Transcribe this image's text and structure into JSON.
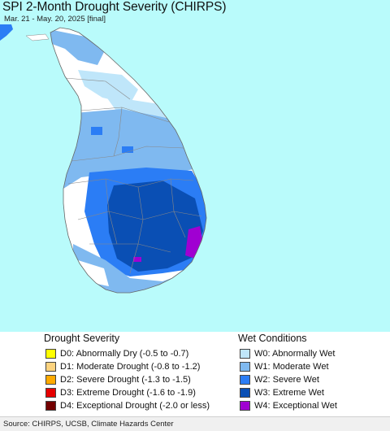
{
  "title": "SPI 2-Month Drought Severity (CHIRPS)",
  "subtitle": "Mar. 21 - May. 20, 2025 [final]",
  "legend": {
    "drought_title": "Drought Severity",
    "wet_title": "Wet Conditions",
    "drought": [
      {
        "label": "D0: Abnormally Dry (-0.5 to -0.7)",
        "color": "#ffff00"
      },
      {
        "label": "D1: Moderate Drought (-0.8 to -1.2)",
        "color": "#fcd37f"
      },
      {
        "label": "D2: Severe Drought (-1.3 to -1.5)",
        "color": "#ffaa00"
      },
      {
        "label": "D3: Extreme Drought (-1.6 to -1.9)",
        "color": "#e60000"
      },
      {
        "label": "D4: Exceptional Drought (-2.0 or less)",
        "color": "#730000"
      }
    ],
    "wet": [
      {
        "label": "W0: Abnormally Wet",
        "color": "#bfe6fa"
      },
      {
        "label": "W1: Moderate Wet",
        "color": "#7fb9f0"
      },
      {
        "label": "W2: Severe Wet",
        "color": "#2b7df5"
      },
      {
        "label": "W3: Extreme Wet",
        "color": "#0a4fb4"
      },
      {
        "label": "W4: Exceptional Wet",
        "color": "#a000d2"
      }
    ]
  },
  "source": "Source: CHIRPS, UCSB, Climate Hazards Center",
  "colors": {
    "ocean": "#b9fbfb",
    "land_none": "#ffffff",
    "borders": "#888888"
  }
}
